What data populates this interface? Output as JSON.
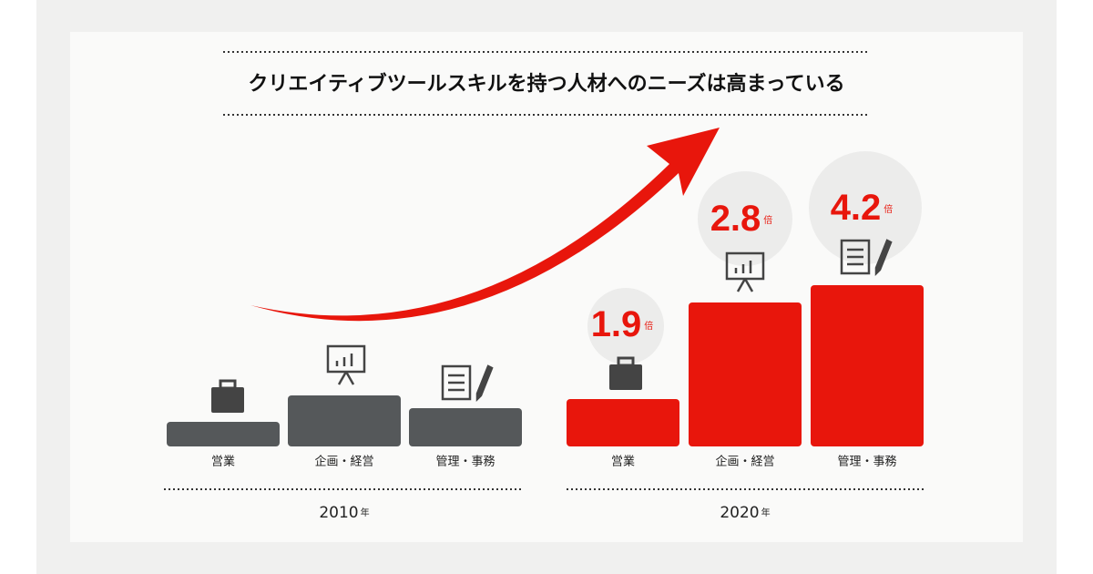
{
  "title": "クリエイティブツールスキルを持つ人材へのニーズは高まっている",
  "groups": [
    {
      "year": 2010,
      "unit": "年",
      "items": [
        {
          "label": "営業"
        },
        {
          "label": "企画・経営"
        },
        {
          "label": "管理・事務"
        }
      ]
    },
    {
      "year": 2020,
      "unit": "年",
      "items": [
        {
          "label": "営業",
          "multiplier": 1.9,
          "unit": "倍"
        },
        {
          "label": "企画・経営",
          "multiplier": 2.8,
          "unit": "倍"
        },
        {
          "label": "管理・事務",
          "multiplier": 4.2,
          "unit": "倍"
        }
      ]
    }
  ]
}
